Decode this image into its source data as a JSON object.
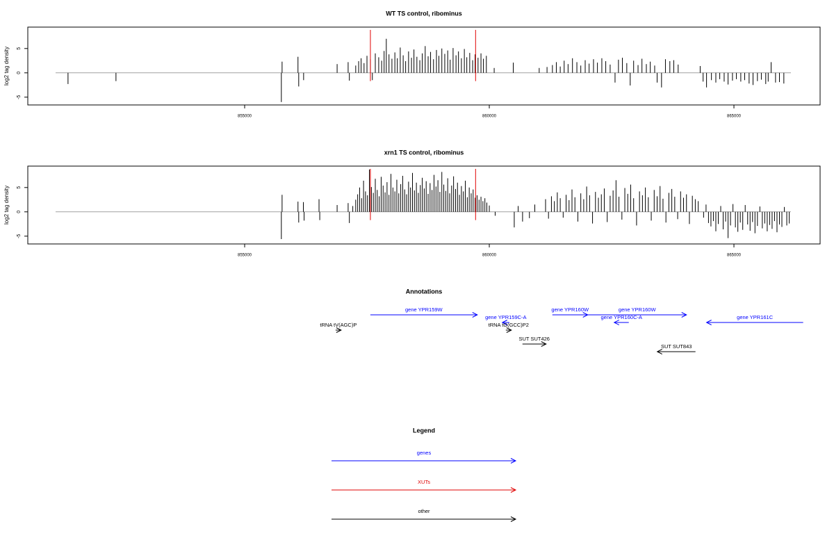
{
  "chart_data": [
    {
      "type": "bar",
      "title": "WT TS control, ribominus",
      "y_label": "log2 tag density",
      "xlim": [
        850568,
        866761
      ],
      "ylim": [
        -6.6,
        9.4
      ],
      "xticks": [
        855000,
        860000,
        865000
      ],
      "yticks": [
        -5,
        0,
        5
      ],
      "color": "#000000",
      "baseline_color": "#a0a0a0",
      "markers": {
        "x": [
          857570,
          859720
        ],
        "color": "#e00000"
      },
      "x": [
        851390,
        852370,
        855750,
        855765,
        856090,
        856105,
        856205,
        856890,
        857115,
        857140,
        857270,
        857330,
        857380,
        857440,
        857500,
        857570,
        857610,
        857670,
        857740,
        857800,
        857850,
        857895,
        857950,
        858010,
        858070,
        858120,
        858180,
        858240,
        858290,
        858350,
        858410,
        858460,
        858520,
        858580,
        858630,
        858690,
        858750,
        858800,
        858860,
        858920,
        858970,
        859030,
        859090,
        859150,
        859200,
        859260,
        859320,
        859370,
        859430,
        859490,
        859540,
        859600,
        859660,
        859710,
        859770,
        859830,
        859880,
        859940,
        860100,
        860490,
        861020,
        861180,
        861290,
        861370,
        861450,
        861530,
        861610,
        861700,
        861790,
        861870,
        861960,
        862040,
        862130,
        862210,
        862300,
        862380,
        862470,
        862570,
        862640,
        862720,
        862810,
        862880,
        862950,
        863040,
        863120,
        863210,
        863290,
        863380,
        863430,
        863520,
        863600,
        863690,
        863770,
        863860,
        864310,
        864370,
        864440,
        864540,
        864630,
        864710,
        864800,
        864880,
        864970,
        865050,
        865140,
        865220,
        865310,
        865390,
        865480,
        865560,
        865650,
        865700,
        865760,
        865850,
        865930,
        866020
      ],
      "values": [
        -2.3,
        -1.7,
        -6.0,
        2.3,
        3.3,
        -2.8,
        -1.5,
        1.8,
        2.2,
        -1.6,
        1.5,
        2.4,
        3.0,
        2.0,
        3.5,
        2.8,
        -1.5,
        4.0,
        3.2,
        2.5,
        4.5,
        7.0,
        3.8,
        2.9,
        4.2,
        3.0,
        5.2,
        3.6,
        2.4,
        4.4,
        3.1,
        4.8,
        3.3,
        2.6,
        4.0,
        5.5,
        3.4,
        4.3,
        2.8,
        4.7,
        3.5,
        5.0,
        3.9,
        4.6,
        2.7,
        5.1,
        3.6,
        4.4,
        3.0,
        4.9,
        3.2,
        4.1,
        2.6,
        3.8,
        3.1,
        4.0,
        2.9,
        3.5,
        1.0,
        2.1,
        1.0,
        1.2,
        1.6,
        2.2,
        1.3,
        2.5,
        1.8,
        3.0,
        2.2,
        1.5,
        2.6,
        1.9,
        2.8,
        2.1,
        3.0,
        2.4,
        1.7,
        -2.0,
        2.7,
        3.1,
        2.0,
        -2.6,
        2.5,
        1.6,
        2.9,
        1.8,
        2.3,
        1.5,
        -2.0,
        -3.0,
        2.8,
        2.4,
        2.6,
        1.7,
        1.4,
        -1.8,
        -3.0,
        -1.5,
        -2.0,
        -1.3,
        -1.8,
        -2.4,
        -1.6,
        -1.3,
        -1.8,
        -1.5,
        -2.2,
        -2.5,
        -1.7,
        -1.4,
        -2.3,
        -1.8,
        2.2,
        -2.0,
        -1.9,
        -2.2
      ]
    },
    {
      "type": "bar",
      "title": "xrn1 TS control, ribominus",
      "y_label": "log2 tag density",
      "xlim": [
        850568,
        866761
      ],
      "ylim": [
        -6.6,
        9.4
      ],
      "xticks": [
        855000,
        860000,
        865000
      ],
      "yticks": [
        -5,
        0,
        5
      ],
      "color": "#000000",
      "baseline_color": "#a0a0a0",
      "markers": {
        "x": [
          857570,
          859720
        ],
        "color": "#e00000"
      },
      "x": [
        855750,
        855765,
        856090,
        856105,
        856200,
        856215,
        856520,
        856535,
        856890,
        857115,
        857140,
        857210,
        857270,
        857310,
        857350,
        857390,
        857430,
        857470,
        857510,
        857550,
        857590,
        857630,
        857670,
        857710,
        857750,
        857790,
        857830,
        857870,
        857910,
        857950,
        857990,
        858030,
        858070,
        858110,
        858150,
        858190,
        858230,
        858270,
        858310,
        858350,
        858390,
        858430,
        858470,
        858510,
        858550,
        858590,
        858630,
        858670,
        858710,
        858750,
        858790,
        858830,
        858870,
        858910,
        858950,
        858990,
        859030,
        859070,
        859110,
        859150,
        859190,
        859230,
        859270,
        859310,
        859350,
        859390,
        859430,
        859470,
        859510,
        859550,
        859590,
        859630,
        859670,
        859710,
        859750,
        859790,
        859830,
        859870,
        859910,
        859950,
        860000,
        860120,
        860510,
        860590,
        860680,
        860820,
        860930,
        861150,
        861210,
        861270,
        861330,
        861390,
        861450,
        861510,
        861570,
        861630,
        861690,
        861750,
        861810,
        861870,
        861930,
        861990,
        862050,
        862110,
        862170,
        862230,
        862290,
        862350,
        862410,
        862470,
        862530,
        862590,
        862650,
        862710,
        862770,
        862830,
        862890,
        862950,
        863010,
        863070,
        863130,
        863190,
        863250,
        863310,
        863370,
        863430,
        863490,
        863550,
        863610,
        863670,
        863730,
        863790,
        863850,
        863910,
        863970,
        864030,
        864090,
        864150,
        864210,
        864270,
        864380,
        864430,
        864480,
        864530,
        864580,
        864630,
        864680,
        864730,
        864780,
        864830,
        864880,
        864930,
        864980,
        865030,
        865080,
        865130,
        865180,
        865230,
        865280,
        865330,
        865380,
        865430,
        865480,
        865530,
        865580,
        865630,
        865680,
        865730,
        865780,
        865830,
        865880,
        865930,
        865980,
        866030,
        866080,
        866130
      ],
      "values": [
        -5.6,
        3.5,
        2.1,
        -2.2,
        2.0,
        -1.8,
        2.6,
        -1.7,
        1.4,
        1.8,
        -2.3,
        1.2,
        2.5,
        3.6,
        5.0,
        2.8,
        6.4,
        4.2,
        3.4,
        8.7,
        5.1,
        3.9,
        6.8,
        4.5,
        3.2,
        7.2,
        5.4,
        4.0,
        6.1,
        3.5,
        7.8,
        5.0,
        4.2,
        6.6,
        3.8,
        5.7,
        7.4,
        4.6,
        3.6,
        6.2,
        5.0,
        8.0,
        4.4,
        6.0,
        3.9,
        5.5,
        7.0,
        4.8,
        6.3,
        3.7,
        5.9,
        4.5,
        7.6,
        5.2,
        6.5,
        4.1,
        8.2,
        5.6,
        4.3,
        6.9,
        3.8,
        5.4,
        7.3,
        4.7,
        6.0,
        3.5,
        5.3,
        4.2,
        6.4,
        3.0,
        5.0,
        3.8,
        4.6,
        2.9,
        3.4,
        2.5,
        3.1,
        2.2,
        2.8,
        1.9,
        1.3,
        -0.8,
        -3.2,
        1.2,
        -2.0,
        -1.3,
        1.5,
        2.6,
        -1.4,
        3.2,
        2.2,
        4.0,
        2.8,
        -1.2,
        3.5,
        2.4,
        4.6,
        3.0,
        -2.0,
        3.8,
        2.6,
        5.2,
        3.4,
        -2.4,
        4.1,
        2.9,
        3.6,
        4.8,
        -2.1,
        3.3,
        4.4,
        6.5,
        3.1,
        -1.6,
        4.9,
        3.7,
        5.6,
        2.8,
        -2.8,
        4.2,
        3.4,
        5.0,
        3.0,
        -1.8,
        4.5,
        3.2,
        5.3,
        2.7,
        -2.2,
        3.9,
        4.7,
        3.1,
        -1.5,
        4.2,
        2.9,
        3.6,
        -2.5,
        3.3,
        2.6,
        2.2,
        -1.2,
        1.5,
        -2.3,
        -3.0,
        -1.9,
        -4.0,
        -2.5,
        1.2,
        -3.6,
        -2.0,
        -5.4,
        -2.8,
        1.6,
        -3.2,
        -4.1,
        -2.2,
        -3.7,
        1.4,
        -2.6,
        -3.9,
        -2.1,
        -4.4,
        -2.9,
        1.1,
        -3.4,
        -2.4,
        -4.0,
        -2.7,
        -3.5,
        -1.9,
        -4.2,
        -2.6,
        -3.1,
        1.0,
        -2.8,
        -2.4
      ]
    }
  ],
  "annotations": {
    "title": "Annotations",
    "features": [
      {
        "label": "gene YPR159W",
        "color": "#0000ff",
        "from": 857569,
        "to": 859755
      },
      {
        "label": "gene YPR159C-A",
        "color": "#0000ff",
        "from": 860409,
        "to": 860267
      },
      {
        "label": "tRNA tV(AGC)P",
        "color": "#000000",
        "from": 856859,
        "to": 856972
      },
      {
        "label": "tRNA tG(GCC)P2",
        "color": "#000000",
        "from": 860338,
        "to": 860451
      },
      {
        "label": "gene YPR160W",
        "color": "#0000ff",
        "from": 861289,
        "to": 862013
      },
      {
        "label": "gene YPR160W",
        "color": "#0000ff",
        "from": 862013,
        "to": 864030
      },
      {
        "label": "gene YPR160C-A",
        "color": "#0000ff",
        "from": 862851,
        "to": 862553
      },
      {
        "label": "gene YPR161C",
        "color": "#0000ff",
        "from": 866415,
        "to": 864441
      },
      {
        "label": "SUT SUT426",
        "color": "#000000",
        "from": 860678,
        "to": 861161
      },
      {
        "label": "SUT SUT843",
        "color": "#000000",
        "from": 864214,
        "to": 863433
      }
    ]
  },
  "legend": {
    "title": "Legend",
    "items": [
      {
        "label": "genes",
        "color": "#0000ff"
      },
      {
        "label": "XUTs",
        "color": "#e00000"
      },
      {
        "label": "other",
        "color": "#000000"
      }
    ]
  }
}
